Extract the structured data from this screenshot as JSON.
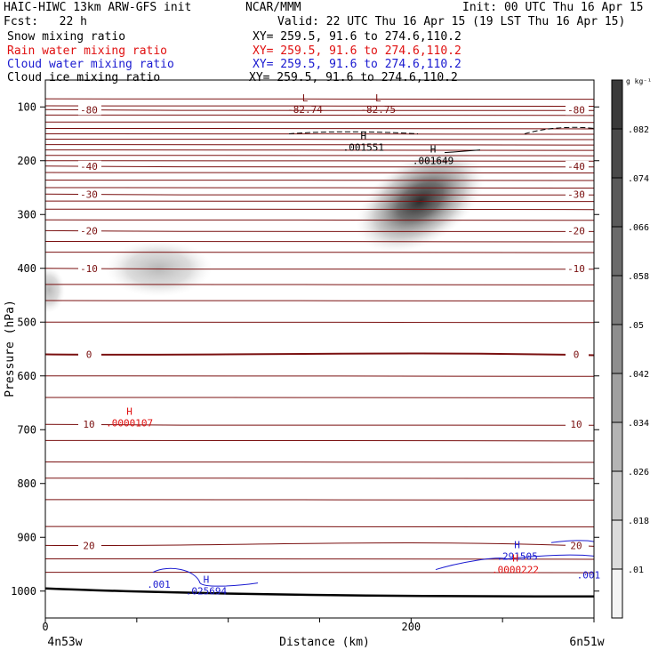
{
  "header": {
    "title_left": "HAIC-HIWC 13km ARW-GFS init",
    "title_mid": "NCAR/MMM",
    "init": "Init: 00 UTC Thu 16 Apr 15",
    "fcst": "Fcst:   22 h",
    "valid": "Valid: 22 UTC Thu 16 Apr 15 (19 LST Thu 16 Apr 15)",
    "fields": [
      {
        "name": "Snow mixing ratio",
        "xy": "XY= 259.5, 91.6 to 274.6,110.2",
        "color": "#000000"
      },
      {
        "name": "Rain water mixing ratio",
        "xy": "XY= 259.5, 91.6 to 274.6,110.2",
        "color": "#e01010"
      },
      {
        "name": "Cloud water mixing ratio",
        "xy": "XY= 259.5, 91.6 to 274.6,110.2",
        "color": "#1a1ad0"
      },
      {
        "name": "Cloud ice mixing ratio",
        "xy": "XY= 259.5, 91.6 to 274.6,110.2",
        "color": "#000000"
      }
    ]
  },
  "chart_data": {
    "type": "heatmap",
    "xlabel": "Distance (km)",
    "ylabel": "Pressure (hPa)",
    "xlim": [
      0,
      300
    ],
    "ylim": [
      1050,
      50
    ],
    "x_ticks": [
      "0",
      "200"
    ],
    "x_tick_values": [
      0,
      200
    ],
    "x_endpoints": [
      "4n53w",
      "6n51w"
    ],
    "y_ticks": [
      "100",
      "200",
      "300",
      "400",
      "500",
      "600",
      "700",
      "800",
      "900",
      "1000"
    ],
    "y_tick_values": [
      100,
      200,
      300,
      400,
      500,
      600,
      700,
      800,
      900,
      1000
    ],
    "colorbar": {
      "unit": "g kg⁻¹",
      "labels": [
        ".082",
        ".074",
        ".066",
        ".058",
        ".05",
        ".042",
        ".034",
        ".026",
        ".018",
        ".01"
      ],
      "values": [
        0.082,
        0.074,
        0.066,
        0.058,
        0.05,
        0.042,
        0.034,
        0.026,
        0.018,
        0.01
      ]
    },
    "shaded_cores": [
      {
        "x": 205,
        "p": 275,
        "peak": 0.082
      },
      {
        "x": 62,
        "p": 400,
        "peak": 0.03
      },
      {
        "x": 2,
        "p": 440,
        "peak": 0.018
      }
    ],
    "temperature_contours": [
      {
        "label": "-80",
        "p": 105,
        "color": "#7a1010"
      },
      {
        "label": "-40",
        "p": 210,
        "color": "#7a1010"
      },
      {
        "label": "-30",
        "p": 262,
        "color": "#7a1010"
      },
      {
        "label": "-20",
        "p": 330,
        "color": "#7a1010"
      },
      {
        "label": "-10",
        "p": 400,
        "color": "#7a1010"
      },
      {
        "label": "0",
        "p": 560,
        "color": "#7a1010"
      },
      {
        "label": "10",
        "p": 690,
        "color": "#7a1010"
      },
      {
        "label": "20",
        "p": 915,
        "color": "#7a1010"
      }
    ],
    "annotations": [
      {
        "text": "L",
        "value": "-82.74",
        "x": 142,
        "p": 90,
        "color": "#7a1010"
      },
      {
        "text": "L",
        "value": "-82.75",
        "x": 182,
        "p": 90,
        "color": "#7a1010"
      },
      {
        "text": "H",
        "value": ".001551",
        "x": 174,
        "p": 160,
        "color": "#000000"
      },
      {
        "text": "H",
        "value": ".001649",
        "x": 212,
        "p": 185,
        "color": "#000000"
      },
      {
        "text": "H",
        "value": ".0000107",
        "x": 46,
        "p": 672,
        "color": "#e01010"
      },
      {
        "text": "H",
        "value": ".025694",
        "x": 88,
        "p": 985,
        "color": "#1a1ad0"
      },
      {
        "text": "H",
        "value": ".291505",
        "x": 258,
        "p": 920,
        "color": "#1a1ad0"
      },
      {
        "text": "H",
        "value": ".0000222",
        "x": 257,
        "p": 945,
        "color": "#e01010"
      }
    ],
    "contour_labels": [
      {
        "text": ".001",
        "x": 62,
        "p": 987,
        "color": "#1a1ad0"
      },
      {
        "text": ".001",
        "x": 297,
        "p": 970,
        "color": "#1a1ad0"
      }
    ]
  }
}
